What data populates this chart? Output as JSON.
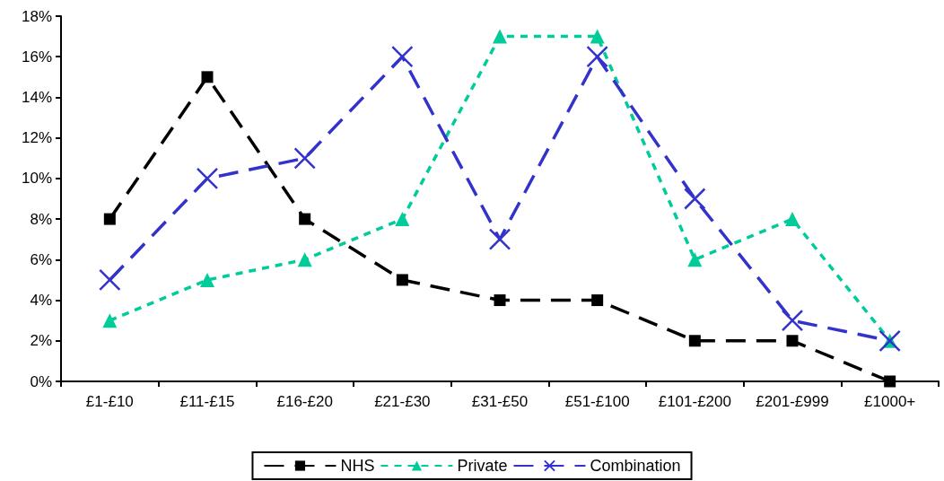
{
  "chart_data": {
    "type": "line",
    "categories": [
      "£1-£10",
      "£11-£15",
      "£16-£20",
      "£21-£30",
      "£31-£50",
      "£51-£100",
      "£101-£200",
      "£201-£999",
      "£1000+"
    ],
    "series": [
      {
        "name": "NHS",
        "color": "#000000",
        "marker": "square",
        "line_style": "dashed",
        "values": [
          8,
          15,
          8,
          5,
          4,
          4,
          2,
          2,
          0
        ]
      },
      {
        "name": "Private",
        "color": "#00cc99",
        "marker": "triangle",
        "line_style": "dotted",
        "values": [
          3,
          5,
          6,
          8,
          17,
          17,
          6,
          8,
          2
        ]
      },
      {
        "name": "Combination",
        "color": "#3333cc",
        "marker": "cross",
        "line_style": "dashed",
        "values": [
          5,
          10,
          11,
          16,
          7,
          16,
          9,
          3,
          2
        ]
      }
    ],
    "ylim": [
      0,
      18
    ],
    "yticks": [
      {
        "value": 0,
        "label": "0%"
      },
      {
        "value": 2,
        "label": "2%"
      },
      {
        "value": 4,
        "label": "4%"
      },
      {
        "value": 6,
        "label": "6%"
      },
      {
        "value": 8,
        "label": "8%"
      },
      {
        "value": 10,
        "label": "10%"
      },
      {
        "value": 12,
        "label": "12%"
      },
      {
        "value": 14,
        "label": "14%"
      },
      {
        "value": 16,
        "label": "16%"
      },
      {
        "value": 18,
        "label": "18%"
      }
    ],
    "legend": "bottom"
  }
}
